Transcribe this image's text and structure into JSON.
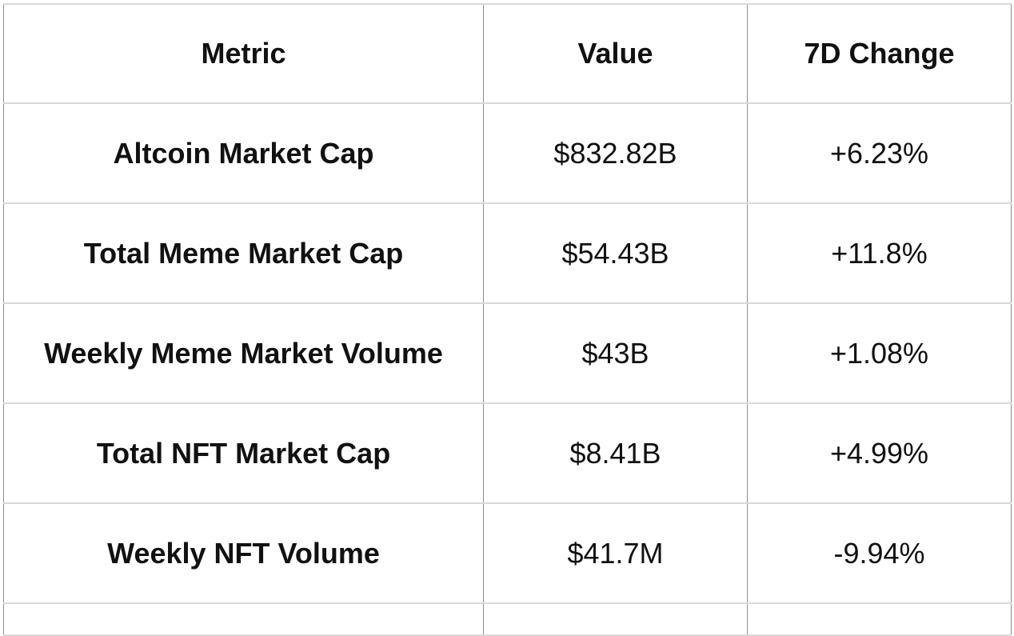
{
  "chart_data": {
    "type": "table",
    "columns": [
      "Metric",
      "Value",
      "7D Change"
    ],
    "rows": [
      {
        "metric": "Altcoin Market Cap",
        "value": "$832.82B",
        "change": "+6.23%"
      },
      {
        "metric": "Total Meme Market Cap",
        "value": "$54.43B",
        "change": "+11.8%"
      },
      {
        "metric": "Weekly Meme Market Volume",
        "value": "$43B",
        "change": "+1.08%"
      },
      {
        "metric": "Total NFT Market Cap",
        "value": "$8.41B",
        "change": "+4.99%"
      },
      {
        "metric": "Weekly NFT Volume",
        "value": "$41.7M",
        "change": "-9.94%"
      }
    ],
    "layout": {
      "header_bold": true,
      "metric_column_bold": true,
      "alignment": "center",
      "partial_sixth_row_visible": true
    },
    "colors": {
      "background": "#ffffff",
      "text": "#111111",
      "row_divider": "#d9d9d9",
      "column_divider": "#8f8f8f"
    }
  }
}
